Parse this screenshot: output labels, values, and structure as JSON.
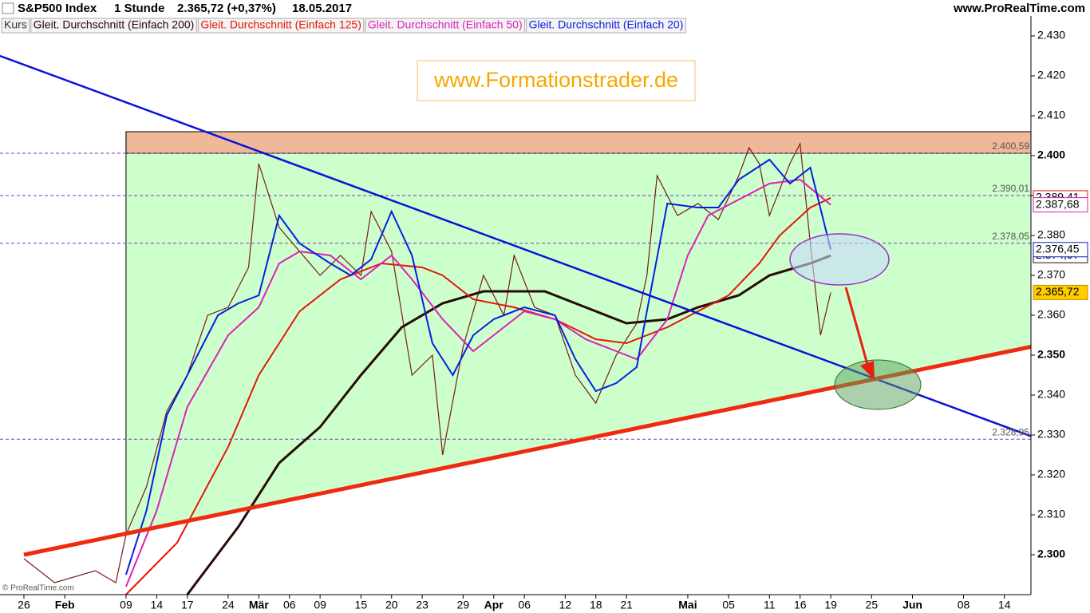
{
  "header": {
    "symbol": "S&P500 Index",
    "interval": "1 Stunde",
    "quote": "2.365,72 (+0,37%)",
    "date": "18.05.2017",
    "site": "www.ProRealTime.com"
  },
  "watermark": "www.Formationstrader.de",
  "copyright": "© ProRealTime.com",
  "chart_data": {
    "type": "line",
    "xlim": [
      -2.34,
      98.6
    ],
    "xticks": [
      {
        "value": 0,
        "label": "26"
      },
      {
        "value": 4,
        "label": "Feb"
      },
      {
        "value": 10,
        "label": "09"
      },
      {
        "value": 13,
        "label": "14"
      },
      {
        "value": 16,
        "label": "17"
      },
      {
        "value": 20,
        "label": "24"
      },
      {
        "value": 23,
        "label": "Mär"
      },
      {
        "value": 26,
        "label": "06"
      },
      {
        "value": 29,
        "label": "09"
      },
      {
        "value": 33,
        "label": "15"
      },
      {
        "value": 36,
        "label": "20"
      },
      {
        "value": 39,
        "label": "23"
      },
      {
        "value": 43,
        "label": "29"
      },
      {
        "value": 46,
        "label": "Apr"
      },
      {
        "value": 49,
        "label": "06"
      },
      {
        "value": 53,
        "label": "12"
      },
      {
        "value": 56,
        "label": "18"
      },
      {
        "value": 59,
        "label": "21"
      },
      {
        "value": 65,
        "label": "Mai"
      },
      {
        "value": 69,
        "label": "05"
      },
      {
        "value": 73,
        "label": "11"
      },
      {
        "value": 76,
        "label": "16"
      },
      {
        "value": 79,
        "label": "19"
      },
      {
        "value": 83,
        "label": "25"
      },
      {
        "value": 87,
        "label": "Jun"
      },
      {
        "value": 92,
        "label": "08"
      },
      {
        "value": 96,
        "label": "14"
      }
    ],
    "ylim": [
      2290,
      2435
    ],
    "yticks": [
      {
        "value": 2300,
        "label": "2.300"
      },
      {
        "value": 2310,
        "label": "2.310"
      },
      {
        "value": 2320,
        "label": "2.320"
      },
      {
        "value": 2330,
        "label": "2.330"
      },
      {
        "value": 2340,
        "label": "2.340"
      },
      {
        "value": 2350,
        "label": "2.350"
      },
      {
        "value": 2360,
        "label": "2.360"
      },
      {
        "value": 2370,
        "label": "2.370"
      },
      {
        "value": 2380,
        "label": "2.380"
      },
      {
        "value": 2390,
        "label": "2.390"
      },
      {
        "value": 2400,
        "label": "2.400"
      },
      {
        "value": 2410,
        "label": "2.410"
      },
      {
        "value": 2420,
        "label": "2.420"
      },
      {
        "value": 2430,
        "label": "2.430"
      }
    ],
    "series": [
      {
        "name": "Kurs",
        "color": "#7a1a1a",
        "end_value": 2365.72,
        "end_label": "2.365,72",
        "x": [
          0,
          3,
          7,
          9,
          10,
          12,
          14,
          16,
          18,
          20,
          22,
          23,
          25,
          27,
          29,
          31,
          33,
          34,
          36,
          38,
          40,
          41,
          43,
          45,
          47,
          48,
          50,
          52,
          54,
          56,
          58,
          60,
          61,
          62,
          64,
          66,
          68,
          70,
          71,
          72,
          73,
          75,
          76,
          77,
          78,
          79
        ],
        "values": [
          2299,
          2293,
          2296,
          2293,
          2305,
          2317,
          2336,
          2345,
          2360,
          2362,
          2372,
          2398,
          2382,
          2376,
          2370,
          2375,
          2370,
          2386,
          2376,
          2345,
          2350,
          2325,
          2352,
          2370,
          2360,
          2375,
          2362,
          2360,
          2345,
          2338,
          2350,
          2358,
          2370,
          2395,
          2385,
          2388,
          2384,
          2395,
          2402,
          2398,
          2385,
          2398,
          2403,
          2378,
          2355,
          2365.72
        ]
      },
      {
        "name": "Gleit. Durchschnitt (Einfach 200)",
        "color": "#2a0a08",
        "end_value": 2374.97,
        "end_label": "2.374,97",
        "x": [
          16,
          21,
          25,
          29,
          33,
          37,
          41,
          45,
          51,
          55,
          59,
          63,
          66,
          70,
          73,
          77,
          79
        ],
        "values": [
          2290,
          2307,
          2323,
          2332,
          2345,
          2357,
          2363,
          2366,
          2366,
          2362,
          2358,
          2359,
          2362,
          2365,
          2370,
          2373,
          2374.97
        ]
      },
      {
        "name": "Gleit. Durchschnitt (Einfach 125)",
        "color": "#e8140a",
        "end_value": 2389.41,
        "end_label": "2.389,41",
        "x": [
          10,
          15,
          20,
          23,
          27,
          31,
          35,
          39,
          41,
          44,
          48,
          52,
          56,
          59,
          63,
          66,
          69,
          72,
          74,
          77,
          79
        ],
        "values": [
          2290,
          2303,
          2327,
          2345,
          2361,
          2369,
          2373,
          2372,
          2370,
          2364,
          2362,
          2359,
          2354,
          2353,
          2357,
          2361,
          2365,
          2373,
          2380,
          2387,
          2389.41
        ]
      },
      {
        "name": "Gleit. Durchschnitt (Einfach 50)",
        "color": "#e020b8",
        "end_value": 2387.68,
        "end_label": "2.387,68",
        "x": [
          10,
          13,
          16,
          20,
          23,
          25,
          27,
          30,
          33,
          36,
          38,
          41,
          44,
          46,
          49,
          52,
          55,
          58,
          60,
          63,
          65,
          67,
          70,
          73,
          76,
          79
        ],
        "values": [
          2292,
          2311,
          2337,
          2355,
          2362,
          2373,
          2376,
          2375,
          2369,
          2375,
          2369,
          2359,
          2351,
          2355,
          2361,
          2359,
          2354,
          2351,
          2349,
          2359,
          2375,
          2385,
          2389,
          2393,
          2394,
          2387.68
        ]
      },
      {
        "name": "Gleit. Durchschnitt (Einfach 20)",
        "color": "#0a1ee0",
        "end_value": 2376.45,
        "end_label": "2.376,45",
        "x": [
          10,
          12,
          14,
          16,
          19,
          21,
          23,
          25,
          27,
          30,
          32,
          34,
          36,
          38,
          40,
          42,
          44,
          46,
          49,
          52,
          54,
          56,
          58,
          60,
          61,
          63,
          66,
          68,
          70,
          73,
          75,
          77,
          79
        ],
        "values": [
          2295,
          2311,
          2335,
          2345,
          2360,
          2363,
          2365,
          2385,
          2378,
          2373,
          2370,
          2374,
          2386,
          2375,
          2353,
          2345,
          2355,
          2359,
          2362,
          2360,
          2349,
          2341,
          2343,
          2347,
          2361,
          2388,
          2387,
          2387,
          2394,
          2399,
          2393,
          2397,
          2376.45
        ]
      }
    ],
    "levels": [
      {
        "value": 2400.59,
        "label": "2.400,59"
      },
      {
        "value": 2390.01,
        "label": "2.390,01"
      },
      {
        "value": 2378.05,
        "label": "2.378,05"
      },
      {
        "value": 2328.95,
        "label": "2.328,95"
      }
    ],
    "zone": {
      "x_start": 10,
      "low": 2400.59,
      "high": 2406,
      "color": "#f0b898"
    },
    "trendlines": [
      {
        "color": "#0a14d8",
        "x": [
          -2.34,
          98.6
        ],
        "values": [
          2425,
          2329.7
        ]
      },
      {
        "color": "#f02a10",
        "x": [
          0,
          98.6
        ],
        "values": [
          2300,
          2352.1
        ]
      }
    ],
    "fill_color": "#ccffcc"
  }
}
